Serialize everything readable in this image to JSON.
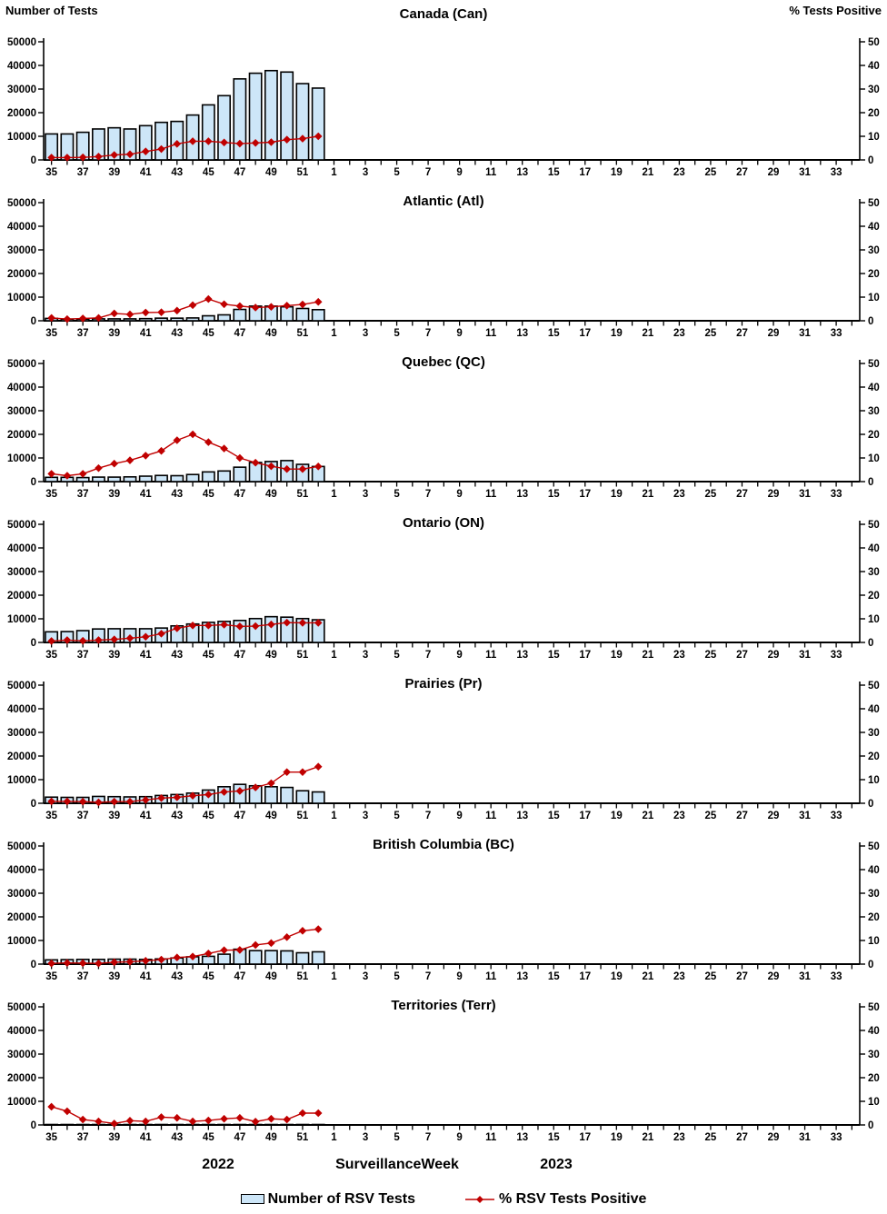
{
  "page": {
    "left_axis_title": "Number of Tests",
    "right_axis_title": "% Tests Positive",
    "footer": {
      "year_left": "2022",
      "x_axis_title": "SurveillanceWeek",
      "year_right": "2023"
    },
    "legend": [
      {
        "label": "Number of RSV Tests",
        "swatch": "bar"
      },
      {
        "label": "% RSV Tests Positive",
        "swatch": "line-diamond"
      }
    ]
  },
  "colors": {
    "bar_fill": "#CDE6F8",
    "bar_stroke": "#000000",
    "line_red": "#C00000",
    "axis": "#000000"
  },
  "axes": {
    "left_label_max": 50000,
    "left_tick_step": 10000,
    "left_ticks": [
      "0",
      "10000",
      "20000",
      "30000",
      "40000",
      "50000"
    ],
    "right_label_max": 50,
    "right_tick_step": 10,
    "right_ticks": [
      "0",
      "10",
      "20",
      "30",
      "40",
      "50"
    ],
    "x_weeks_2022": [
      35,
      36,
      37,
      38,
      39,
      40,
      41,
      42,
      43,
      44,
      45,
      46,
      47,
      48,
      49,
      50,
      51,
      52
    ],
    "x_weeks_2023": [
      1,
      2,
      3,
      4,
      5,
      6,
      7,
      8,
      9,
      10,
      11,
      12,
      13,
      14,
      15,
      16,
      17,
      18,
      19,
      20,
      21,
      22,
      23,
      24,
      25,
      26,
      27,
      28,
      29,
      30,
      31,
      32,
      33,
      34
    ],
    "x_labeled_weeks_rule": "odd-weeks-only"
  },
  "chart_data": [
    {
      "type": "combo-bar-line",
      "title": "Canada (Can)",
      "ylim_left": [
        0,
        50000
      ],
      "ylim_right": [
        0,
        50
      ],
      "categories": [
        35,
        36,
        37,
        38,
        39,
        40,
        41,
        42,
        43,
        44,
        45,
        46,
        47,
        48,
        49,
        50,
        51,
        52
      ],
      "series": [
        {
          "name": "Number of RSV Tests",
          "axis": "left",
          "values": [
            11000,
            11000,
            11700,
            13100,
            13600,
            13100,
            14500,
            15900,
            16300,
            19000,
            23300,
            27200,
            34300,
            36700,
            37800,
            37200,
            32300,
            30400
          ]
        },
        {
          "name": "% RSV Tests Positive",
          "axis": "right",
          "values": [
            1.0,
            1.0,
            1.1,
            1.4,
            2.1,
            2.4,
            3.6,
            4.6,
            6.8,
            7.9,
            7.9,
            7.4,
            6.9,
            7.2,
            7.5,
            8.6,
            9.0,
            10.0
          ]
        }
      ]
    },
    {
      "type": "combo-bar-line",
      "title": "Atlantic (Atl)",
      "ylim_left": [
        0,
        50000
      ],
      "ylim_right": [
        0,
        50
      ],
      "categories": [
        35,
        36,
        37,
        38,
        39,
        40,
        41,
        42,
        43,
        44,
        45,
        46,
        47,
        48,
        49,
        50,
        51,
        52
      ],
      "series": [
        {
          "name": "Number of RSV Tests",
          "axis": "left",
          "values": [
            1000,
            700,
            700,
            800,
            800,
            800,
            900,
            1100,
            1100,
            1200,
            2100,
            2500,
            4800,
            6200,
            6200,
            5900,
            5200,
            4700
          ]
        },
        {
          "name": "% RSV Tests Positive",
          "axis": "right",
          "values": [
            1.2,
            0.7,
            1.0,
            1.2,
            3.1,
            2.7,
            3.5,
            3.6,
            4.3,
            6.6,
            9.2,
            7.0,
            6.2,
            5.6,
            5.9,
            6.4,
            6.9,
            8.0
          ]
        }
      ]
    },
    {
      "type": "combo-bar-line",
      "title": "Quebec (QC)",
      "ylim_left": [
        0,
        50000
      ],
      "ylim_right": [
        0,
        50
      ],
      "categories": [
        35,
        36,
        37,
        38,
        39,
        40,
        41,
        42,
        43,
        44,
        45,
        46,
        47,
        48,
        49,
        50,
        51,
        52
      ],
      "series": [
        {
          "name": "Number of RSV Tests",
          "axis": "left",
          "values": [
            1800,
            1800,
            1700,
            1900,
            1900,
            2000,
            2300,
            2600,
            2500,
            3000,
            4100,
            4500,
            6100,
            8100,
            8500,
            8900,
            7300,
            6400
          ]
        },
        {
          "name": "% RSV Tests Positive",
          "axis": "right",
          "values": [
            3.3,
            2.5,
            3.3,
            5.7,
            7.6,
            9.0,
            11.0,
            13.0,
            17.5,
            20.0,
            16.7,
            14.0,
            10.0,
            8.0,
            6.5,
            5.3,
            5.3,
            6.4
          ]
        }
      ]
    },
    {
      "type": "combo-bar-line",
      "title": "Ontario (ON)",
      "ylim_left": [
        0,
        50000
      ],
      "ylim_right": [
        0,
        50
      ],
      "categories": [
        35,
        36,
        37,
        38,
        39,
        40,
        41,
        42,
        43,
        44,
        45,
        46,
        47,
        48,
        49,
        50,
        51,
        52
      ],
      "series": [
        {
          "name": "Number of RSV Tests",
          "axis": "left",
          "values": [
            4500,
            4600,
            5000,
            5700,
            5800,
            5800,
            5800,
            6100,
            7000,
            7800,
            8500,
            8900,
            9300,
            10100,
            10900,
            10700,
            10100,
            9600
          ]
        },
        {
          "name": "% RSV Tests Positive",
          "axis": "right",
          "values": [
            0.6,
            1.0,
            0.7,
            1.0,
            1.3,
            1.8,
            2.4,
            3.7,
            6.0,
            7.2,
            7.2,
            7.5,
            6.8,
            6.9,
            7.6,
            8.4,
            8.3,
            8.3
          ]
        }
      ]
    },
    {
      "type": "combo-bar-line",
      "title": "Prairies (Pr)",
      "ylim_left": [
        0,
        50000
      ],
      "ylim_right": [
        0,
        50
      ],
      "categories": [
        35,
        36,
        37,
        38,
        39,
        40,
        41,
        42,
        43,
        44,
        45,
        46,
        47,
        48,
        49,
        50,
        51,
        52
      ],
      "series": [
        {
          "name": "Number of RSV Tests",
          "axis": "left",
          "values": [
            2600,
            2500,
            2500,
            2900,
            2800,
            2700,
            2800,
            3300,
            3700,
            4300,
            5600,
            7000,
            8000,
            7400,
            7000,
            6700,
            5300,
            4800
          ]
        },
        {
          "name": "% RSV Tests Positive",
          "axis": "right",
          "values": [
            0.8,
            0.8,
            0.7,
            0.4,
            0.7,
            0.7,
            1.4,
            2.2,
            2.5,
            3.2,
            3.7,
            4.8,
            5.2,
            6.7,
            8.5,
            13.2,
            13.2,
            15.5
          ]
        }
      ]
    },
    {
      "type": "combo-bar-line",
      "title": "British Columbia (BC)",
      "ylim_left": [
        0,
        50000
      ],
      "ylim_right": [
        0,
        50
      ],
      "categories": [
        35,
        36,
        37,
        38,
        39,
        40,
        41,
        42,
        43,
        44,
        45,
        46,
        47,
        48,
        49,
        50,
        51,
        52
      ],
      "series": [
        {
          "name": "Number of RSV Tests",
          "axis": "left",
          "values": [
            1800,
            1900,
            2000,
            2000,
            2100,
            2100,
            2000,
            2200,
            2600,
            3100,
            3300,
            4200,
            6300,
            5700,
            5700,
            5600,
            4800,
            5200
          ]
        },
        {
          "name": "% RSV Tests Positive",
          "axis": "right",
          "values": [
            0.3,
            0.5,
            0.4,
            0.3,
            0.8,
            1.0,
            1.4,
            1.9,
            2.8,
            3.2,
            4.5,
            5.9,
            6.0,
            8.1,
            8.9,
            11.4,
            14.1,
            14.8
          ]
        }
      ]
    },
    {
      "type": "combo-bar-line",
      "title": "Territories (Terr)",
      "ylim_left": [
        0,
        50000
      ],
      "ylim_right": [
        0,
        50
      ],
      "categories": [
        35,
        36,
        37,
        38,
        39,
        40,
        41,
        42,
        43,
        44,
        45,
        46,
        47,
        48,
        49,
        50,
        51,
        52
      ],
      "series": [
        {
          "name": "Number of RSV Tests",
          "axis": "left",
          "values": [
            50,
            50,
            50,
            50,
            50,
            50,
            50,
            50,
            50,
            50,
            50,
            50,
            50,
            50,
            50,
            50,
            50,
            50
          ]
        },
        {
          "name": "% RSV Tests Positive",
          "axis": "right",
          "values": [
            7.7,
            5.8,
            2.3,
            1.5,
            0.6,
            1.8,
            1.5,
            3.3,
            3.0,
            1.5,
            1.9,
            2.6,
            3.0,
            1.4,
            2.6,
            2.3,
            5.0,
            5.0
          ]
        }
      ]
    }
  ]
}
